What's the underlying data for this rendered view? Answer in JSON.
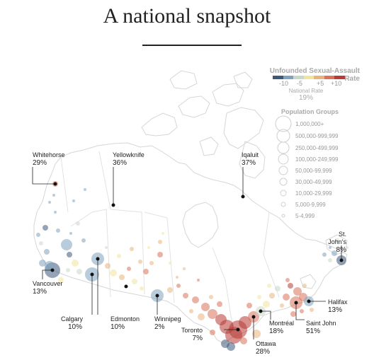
{
  "title": "A national snapshot",
  "legend": {
    "rate_title": "Unfounded Sexual-Assault Rate",
    "scale_labels": [
      "-10",
      "-5",
      "+5",
      "+10"
    ],
    "scale_colors": [
      "#3d5a7a",
      "#7fa3bd",
      "#c8d8c8",
      "#f3e49a",
      "#e9b27c",
      "#d9735a",
      "#b83b35"
    ],
    "national_rate_label": "National Rate",
    "national_rate_value": "19%",
    "pop_title": "Population Groups",
    "pop_groups": [
      "1,000,000+",
      "500,000-999,999",
      "250,000-499,999",
      "100,000-249,999",
      "50,000-99,999",
      "30,000-49,999",
      "10,000-29,999",
      "5,000-9,999",
      "5-4,999"
    ]
  },
  "cities": [
    {
      "name": "Whitehorse",
      "pct": "29%"
    },
    {
      "name": "Yellowknife",
      "pct": "36%"
    },
    {
      "name": "Iqaluit",
      "pct": "37%"
    },
    {
      "name": "St. John's",
      "pct": "8%"
    },
    {
      "name": "Vancouver",
      "pct": "13%"
    },
    {
      "name": "Calgary",
      "pct": "10%"
    },
    {
      "name": "Edmonton",
      "pct": "10%"
    },
    {
      "name": "Winnipeg",
      "pct": "2%"
    },
    {
      "name": "Halifax",
      "pct": "13%"
    },
    {
      "name": "Saint John",
      "pct": "51%"
    },
    {
      "name": "Montréal",
      "pct": "18%"
    },
    {
      "name": "Toronto",
      "pct": "7%"
    },
    {
      "name": "Ottawa",
      "pct": "28%"
    }
  ]
}
